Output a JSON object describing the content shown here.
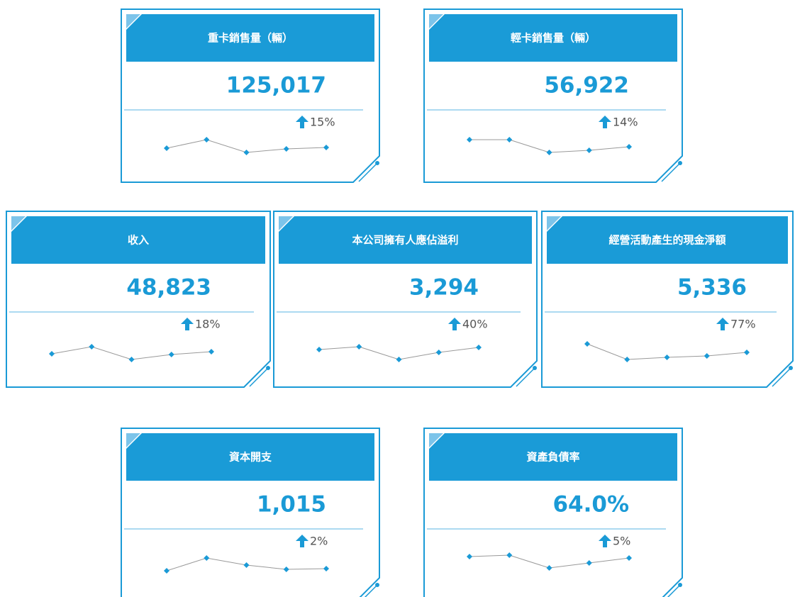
{
  "cards": [
    {
      "title": "重卡銷售量（輛）",
      "value": "125,017",
      "change": "15%",
      "trend": [
        23,
        35,
        17,
        22,
        24
      ]
    },
    {
      "title": "輕卡銷售量（輛）",
      "value": "56,922",
      "change": "14%",
      "trend": [
        35,
        35,
        17,
        20,
        25
      ]
    },
    {
      "title": "收入",
      "value": "48,823",
      "change": "18%",
      "trend": [
        18,
        28,
        10,
        17,
        21
      ]
    },
    {
      "title": "本公司擁有人應佔溢利",
      "value": "3,294",
      "change": "40%",
      "trend": [
        24,
        28,
        10,
        20,
        27
      ]
    },
    {
      "title": "經營活動產生的現金淨額",
      "value": "5,336",
      "change": "77%",
      "trend": [
        32,
        10,
        13,
        15,
        20
      ]
    },
    {
      "title": "資本開支",
      "value": "1,015",
      "change": "2%",
      "trend": [
        18,
        36,
        26,
        20,
        21
      ]
    },
    {
      "title": "資產負債率",
      "value": "64.0%",
      "change": "5%",
      "trend": [
        38,
        40,
        22,
        29,
        36
      ]
    }
  ]
}
